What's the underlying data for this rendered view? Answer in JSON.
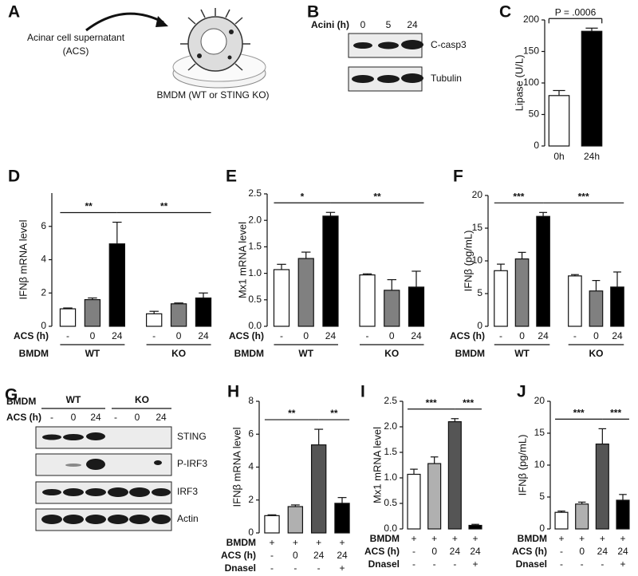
{
  "panels": {
    "A": {
      "letter": "A",
      "lines": [
        "Acinar cell supernatant",
        "(ACS)"
      ],
      "cells": "BMDM (WT or STING KO)"
    },
    "B": {
      "letter": "B",
      "lane_label": "Acini (h)",
      "lanes": [
        "0",
        "5",
        "24"
      ],
      "bands": [
        "C-casp3",
        "Tubulin"
      ]
    },
    "G": {
      "letter": "G",
      "group_label": "BMDM",
      "groups": [
        "WT",
        "KO"
      ],
      "lane_label": "ACS (h)",
      "lanes": [
        "-",
        "0",
        "24",
        "-",
        "0",
        "24"
      ],
      "bands": [
        "STING",
        "P-IRF3",
        "IRF3",
        "Actin"
      ]
    }
  },
  "chart_data": [
    {
      "type": "bar",
      "panel": "C",
      "ylabel": "Lipase (U/L)",
      "categories": [
        "0h",
        "24h"
      ],
      "values": [
        80,
        182
      ],
      "errors": [
        8,
        5
      ],
      "colors": [
        "#ffffff",
        "#000000"
      ],
      "ylim": [
        0,
        200
      ],
      "yticks": [
        0,
        50,
        100,
        150,
        200
      ],
      "significance": [
        {
          "label": "P = .0006",
          "compare": [
            0,
            1
          ]
        }
      ]
    },
    {
      "type": "bar",
      "panel": "D",
      "ylabel": "IFNβ mRNA level",
      "values": [
        1.05,
        1.6,
        4.95,
        0.75,
        1.35,
        1.7
      ],
      "errors": [
        0.05,
        0.1,
        1.3,
        0.15,
        0.05,
        0.3
      ],
      "colors": [
        "#ffffff",
        "#808080",
        "#000000",
        "#ffffff",
        "#808080",
        "#000000"
      ],
      "ylim": [
        0,
        8
      ],
      "yticks": [
        0,
        2,
        4,
        6
      ],
      "rows": [
        {
          "label": "ACS (h)",
          "entries": [
            "-",
            "0",
            "24",
            "-",
            "0",
            "24"
          ]
        }
      ],
      "groups": {
        "label": "BMDM",
        "names": [
          "WT",
          "KO"
        ]
      },
      "significance": [
        {
          "label": "**",
          "compare": [
            0,
            2
          ]
        },
        {
          "label": "**",
          "compare": [
            2,
            5
          ]
        }
      ]
    },
    {
      "type": "bar",
      "panel": "E",
      "ylabel": "Mx1 mRNA level",
      "values": [
        1.07,
        1.28,
        2.08,
        0.97,
        0.68,
        0.74
      ],
      "errors": [
        0.1,
        0.12,
        0.07,
        0.02,
        0.2,
        0.3
      ],
      "colors": [
        "#ffffff",
        "#808080",
        "#000000",
        "#ffffff",
        "#808080",
        "#000000"
      ],
      "ylim": [
        0,
        2.5
      ],
      "yticks": [
        {
          "value": 0,
          "label": "0.0"
        },
        0.5,
        {
          "value": 1,
          "label": "1.0"
        },
        1.5,
        {
          "value": 2,
          "label": "2.0"
        },
        2.5
      ],
      "rows": [
        {
          "label": "ACS (h)",
          "entries": [
            "-",
            "0",
            "24",
            "-",
            "0",
            "24"
          ]
        }
      ],
      "groups": {
        "label": "BMDM",
        "names": [
          "WT",
          "KO"
        ]
      },
      "significance": [
        {
          "label": "*",
          "compare": [
            0,
            2
          ]
        },
        {
          "label": "**",
          "compare": [
            2,
            5
          ]
        }
      ]
    },
    {
      "type": "bar",
      "panel": "F",
      "ylabel": "IFNβ (pg/mL)",
      "values": [
        8.5,
        10.3,
        16.8,
        7.7,
        5.4,
        6.0
      ],
      "errors": [
        1.0,
        1.0,
        0.6,
        0.2,
        1.6,
        2.3
      ],
      "colors": [
        "#ffffff",
        "#808080",
        "#000000",
        "#ffffff",
        "#808080",
        "#000000"
      ],
      "ylim": [
        0,
        20
      ],
      "yticks": [
        0,
        5,
        10,
        15,
        20
      ],
      "rows": [
        {
          "label": "ACS (h)",
          "entries": [
            "-",
            "0",
            "24",
            "-",
            "0",
            "24"
          ]
        }
      ],
      "groups": {
        "label": "BMDM",
        "names": [
          "WT",
          "KO"
        ]
      },
      "significance": [
        {
          "label": "***",
          "compare": [
            0,
            2
          ]
        },
        {
          "label": "***",
          "compare": [
            2,
            5
          ]
        }
      ]
    },
    {
      "type": "bar",
      "panel": "H",
      "ylabel": "IFNβ mRNA level",
      "values": [
        1.05,
        1.6,
        5.35,
        1.8
      ],
      "errors": [
        0.05,
        0.1,
        0.95,
        0.35
      ],
      "colors": [
        "#ffffff",
        "#b0b0b0",
        "#555555",
        "#000000"
      ],
      "ylim": [
        0,
        8
      ],
      "yticks": [
        0,
        2,
        4,
        6,
        8
      ],
      "rows": [
        {
          "label": "BMDM",
          "entries": [
            "+",
            "+",
            "+",
            "+"
          ]
        },
        {
          "label": "ACS (h)",
          "entries": [
            "-",
            "0",
            "24",
            "24"
          ]
        },
        {
          "label": "Dnasel",
          "entries": [
            "-",
            "-",
            "-",
            "+"
          ]
        }
      ],
      "significance": [
        {
          "label": "**",
          "compare": [
            0,
            2
          ]
        },
        {
          "label": "**",
          "compare": [
            2,
            3
          ]
        }
      ]
    },
    {
      "type": "bar",
      "panel": "I",
      "ylabel": "Mx1 mRNA level",
      "values": [
        1.07,
        1.28,
        2.1,
        0.07
      ],
      "errors": [
        0.1,
        0.13,
        0.06,
        0.02
      ],
      "colors": [
        "#ffffff",
        "#b0b0b0",
        "#555555",
        "#000000"
      ],
      "ylim": [
        0,
        2.5
      ],
      "yticks": [
        {
          "value": 0,
          "label": "0.0"
        },
        0.5,
        {
          "value": 1,
          "label": "1.0"
        },
        1.5,
        {
          "value": 2,
          "label": "2.0"
        },
        2.5
      ],
      "rows": [
        {
          "label": "BMDM",
          "entries": [
            "+",
            "+",
            "+",
            "+"
          ]
        },
        {
          "label": "ACS (h)",
          "entries": [
            "-",
            "0",
            "24",
            "24"
          ]
        },
        {
          "label": "Dnasel",
          "entries": [
            "-",
            "-",
            "-",
            "+"
          ]
        }
      ],
      "significance": [
        {
          "label": "***",
          "compare": [
            0,
            2
          ]
        },
        {
          "label": "***",
          "compare": [
            2,
            3
          ]
        }
      ]
    },
    {
      "type": "bar",
      "panel": "J",
      "ylabel": "IFNβ (pg/mL)",
      "values": [
        2.6,
        3.9,
        13.3,
        4.5
      ],
      "errors": [
        0.2,
        0.3,
        2.4,
        0.9
      ],
      "colors": [
        "#ffffff",
        "#b0b0b0",
        "#555555",
        "#000000"
      ],
      "ylim": [
        0,
        20
      ],
      "yticks": [
        0,
        5,
        10,
        15,
        20
      ],
      "rows": [
        {
          "label": "BMDM",
          "entries": [
            "+",
            "+",
            "+",
            "+"
          ]
        },
        {
          "label": "ACS (h)",
          "entries": [
            "-",
            "0",
            "24",
            "24"
          ]
        },
        {
          "label": "Dnasel",
          "entries": [
            "-",
            "-",
            "-",
            "+"
          ]
        }
      ],
      "significance": [
        {
          "label": "***",
          "compare": [
            0,
            2
          ]
        },
        {
          "label": "***",
          "compare": [
            2,
            3
          ]
        }
      ]
    }
  ]
}
